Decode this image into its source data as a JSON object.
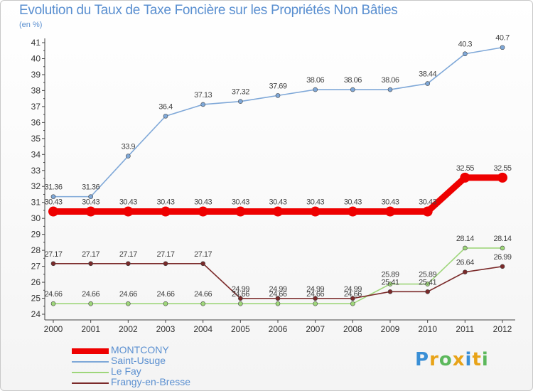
{
  "chart_data": {
    "type": "line",
    "title": "Evolution du Taux de Taxe Foncière sur les Propriétés Non Bâties",
    "unit_label": "(en %)",
    "x": [
      "2000",
      "2001",
      "2002",
      "2003",
      "2004",
      "2005",
      "2006",
      "2007",
      "2008",
      "2009",
      "2010",
      "2011",
      "2012"
    ],
    "ylim": [
      24,
      41
    ],
    "yticks": [
      "24",
      "25",
      "26",
      "27",
      "28",
      "29",
      "30",
      "31",
      "32",
      "33",
      "34",
      "35",
      "36",
      "37",
      "38",
      "39",
      "40",
      "41"
    ],
    "series": [
      {
        "name": "MONTCONY",
        "color": "#ee0000",
        "values": [
          30.43,
          30.43,
          30.43,
          30.43,
          30.43,
          30.43,
          30.43,
          30.43,
          30.43,
          30.43,
          30.43,
          32.55,
          32.55
        ],
        "labels": [
          "30.43",
          "30.43",
          "30.43",
          "30.43",
          "30.43",
          "30.43",
          "30.43",
          "30.43",
          "30.43",
          "30.43",
          "30.43",
          "32.55",
          "32.55"
        ]
      },
      {
        "name": "Saint-Usuge",
        "color": "#7fa8d8",
        "values": [
          31.36,
          31.36,
          33.9,
          36.4,
          37.13,
          37.32,
          37.69,
          38.06,
          38.06,
          38.06,
          38.44,
          40.3,
          40.7
        ],
        "labels": [
          "31.36",
          "31.36",
          "33.9",
          "36.4",
          "37.13",
          "37.32",
          "37.69",
          "38.06",
          "38.06",
          "38.06",
          "38.44",
          "40.3",
          "40.7"
        ]
      },
      {
        "name": "Le Fay",
        "color": "#9ed67a",
        "values": [
          24.66,
          24.66,
          24.66,
          24.66,
          24.66,
          24.66,
          24.66,
          24.66,
          24.66,
          25.89,
          25.89,
          28.14,
          28.14
        ],
        "labels": [
          "24.66",
          "24.66",
          "24.66",
          "24.66",
          "24.66",
          "24.66",
          "24.66",
          "24.66",
          "24.66",
          "25.89",
          "25.89",
          "28.14",
          "28.14"
        ]
      },
      {
        "name": "Frangy-en-Bresse",
        "color": "#7b2a2a",
        "values": [
          27.17,
          27.17,
          27.17,
          27.17,
          27.17,
          24.99,
          24.99,
          24.99,
          24.99,
          25.41,
          25.41,
          26.64,
          26.99
        ],
        "labels": [
          "27.17",
          "27.17",
          "27.17",
          "27.17",
          "27.17",
          "24.99",
          "24.99",
          "24.99",
          "24.99",
          "25.41",
          "25.41",
          "26.64",
          "26.99"
        ]
      }
    ],
    "grid": false,
    "legend_position": "bottom-left"
  },
  "logo": {
    "letters": [
      "P",
      "r",
      "o",
      "x",
      "i",
      "t",
      "i"
    ],
    "colors": [
      "#3a8fd6",
      "#e8a318",
      "#5cb85c",
      "#e8a318",
      "#3a8fd6",
      "#e8a318",
      "#5cb85c"
    ]
  }
}
